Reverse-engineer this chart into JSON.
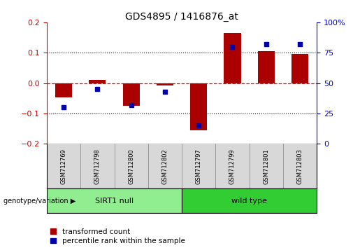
{
  "title": "GDS4895 / 1416876_at",
  "samples": [
    "GSM712769",
    "GSM712798",
    "GSM712800",
    "GSM712802",
    "GSM712797",
    "GSM712799",
    "GSM712801",
    "GSM712803"
  ],
  "transformed_count": [
    -0.048,
    0.01,
    -0.075,
    -0.008,
    -0.155,
    0.165,
    0.105,
    0.095
  ],
  "percentile_rank": [
    30,
    45,
    32,
    43,
    15,
    80,
    82,
    82
  ],
  "groups": [
    {
      "label": "SIRT1 null",
      "start": 0,
      "end": 4,
      "color": "#90EE90"
    },
    {
      "label": "wild type",
      "start": 4,
      "end": 8,
      "color": "#32CD32"
    }
  ],
  "bar_color": "#AA0000",
  "dot_color": "#0000AA",
  "ylim_left": [
    -0.2,
    0.2
  ],
  "ylim_right": [
    0,
    100
  ],
  "yticks_left": [
    -0.2,
    -0.1,
    0,
    0.1,
    0.2
  ],
  "yticks_right": [
    0,
    25,
    50,
    75,
    100
  ],
  "ytick_labels_right": [
    "0",
    "25",
    "50",
    "75",
    "100%"
  ],
  "hlines_dotted": [
    0.1,
    -0.1
  ],
  "bar_width": 0.5,
  "dot_size": 22,
  "left_axis_color": "#CC0000",
  "right_axis_color": "#0000CC",
  "legend_items": [
    "transformed count",
    "percentile rank within the sample"
  ],
  "genotype_label": "genotype/variation"
}
